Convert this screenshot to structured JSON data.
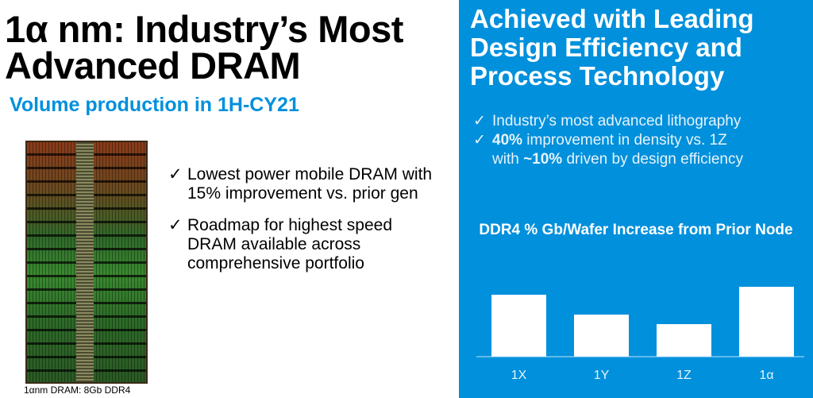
{
  "left": {
    "title_line1": "1α nm: Industry’s Most",
    "title_line2": "Advanced DRAM",
    "subtitle": "Volume production in 1H-CY21",
    "image_caption": "1αnm DRAM: 8Gb DDR4",
    "bullets": [
      {
        "icon": "check-mark-icon",
        "text": "Lowest power mobile DRAM with 15% improvement vs. prior gen"
      },
      {
        "icon": "check-mark-icon",
        "text": "Roadmap for highest speed DRAM available across comprehensive portfolio"
      }
    ]
  },
  "right": {
    "background_color": "#0090dc",
    "title_line1": "Achieved with Leading",
    "title_line2": "Design Efficiency and",
    "title_line3": "Process Technology",
    "bullets": [
      {
        "icon": "check-mark-icon",
        "text": "Industry’s most advanced lithography"
      },
      {
        "icon": "check-mark-icon",
        "bold1": "40%",
        "text1": " improvement in density vs. 1Z",
        "text2": "with ",
        "bold2": "~10%",
        "text3": " driven by design efficiency"
      }
    ],
    "check": "✓"
  },
  "chart_data": {
    "type": "bar",
    "title": "DDR4 % Gb/Wafer Increase from Prior Node",
    "categories": [
      "1X",
      "1Y",
      "1Z",
      "1α"
    ],
    "values": [
      78,
      53,
      41,
      88
    ],
    "value_units": "relative (no axis printed)",
    "ylim": [
      0,
      100
    ],
    "grid": false,
    "bar_color": "#ffffff"
  }
}
